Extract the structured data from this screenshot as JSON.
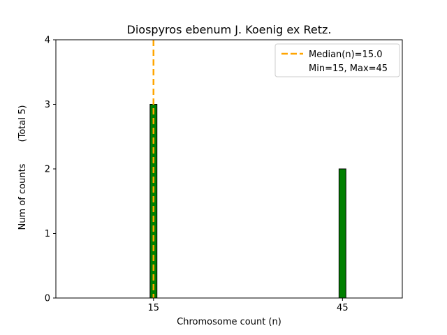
{
  "figure": {
    "background_color": "#ffffff"
  },
  "chart_data": {
    "type": "bar",
    "title": "Diospyros ebenum J. Koenig ex Retz.",
    "xlabel": "Chromosome count (n)",
    "ylabel": "Num of counts",
    "ylabel_note": "(Total 5)",
    "categories": [
      15,
      45
    ],
    "values": [
      3,
      2
    ],
    "total_counts": 5,
    "median": 15.0,
    "min": 15,
    "max": 45,
    "xlim": [
      -0.5,
      54.5
    ],
    "ylim": [
      0,
      4
    ],
    "xticks": [
      15,
      45
    ],
    "yticks": [
      0,
      1,
      2,
      3,
      4
    ],
    "grid": false,
    "bar_color": "#008000",
    "bar_edge_color": "#000000",
    "median_line_color": "#ffa500",
    "legend_position": "upper right",
    "legend_labels": [
      "Median(n)=15.0",
      "Min=15, Max=45"
    ]
  }
}
